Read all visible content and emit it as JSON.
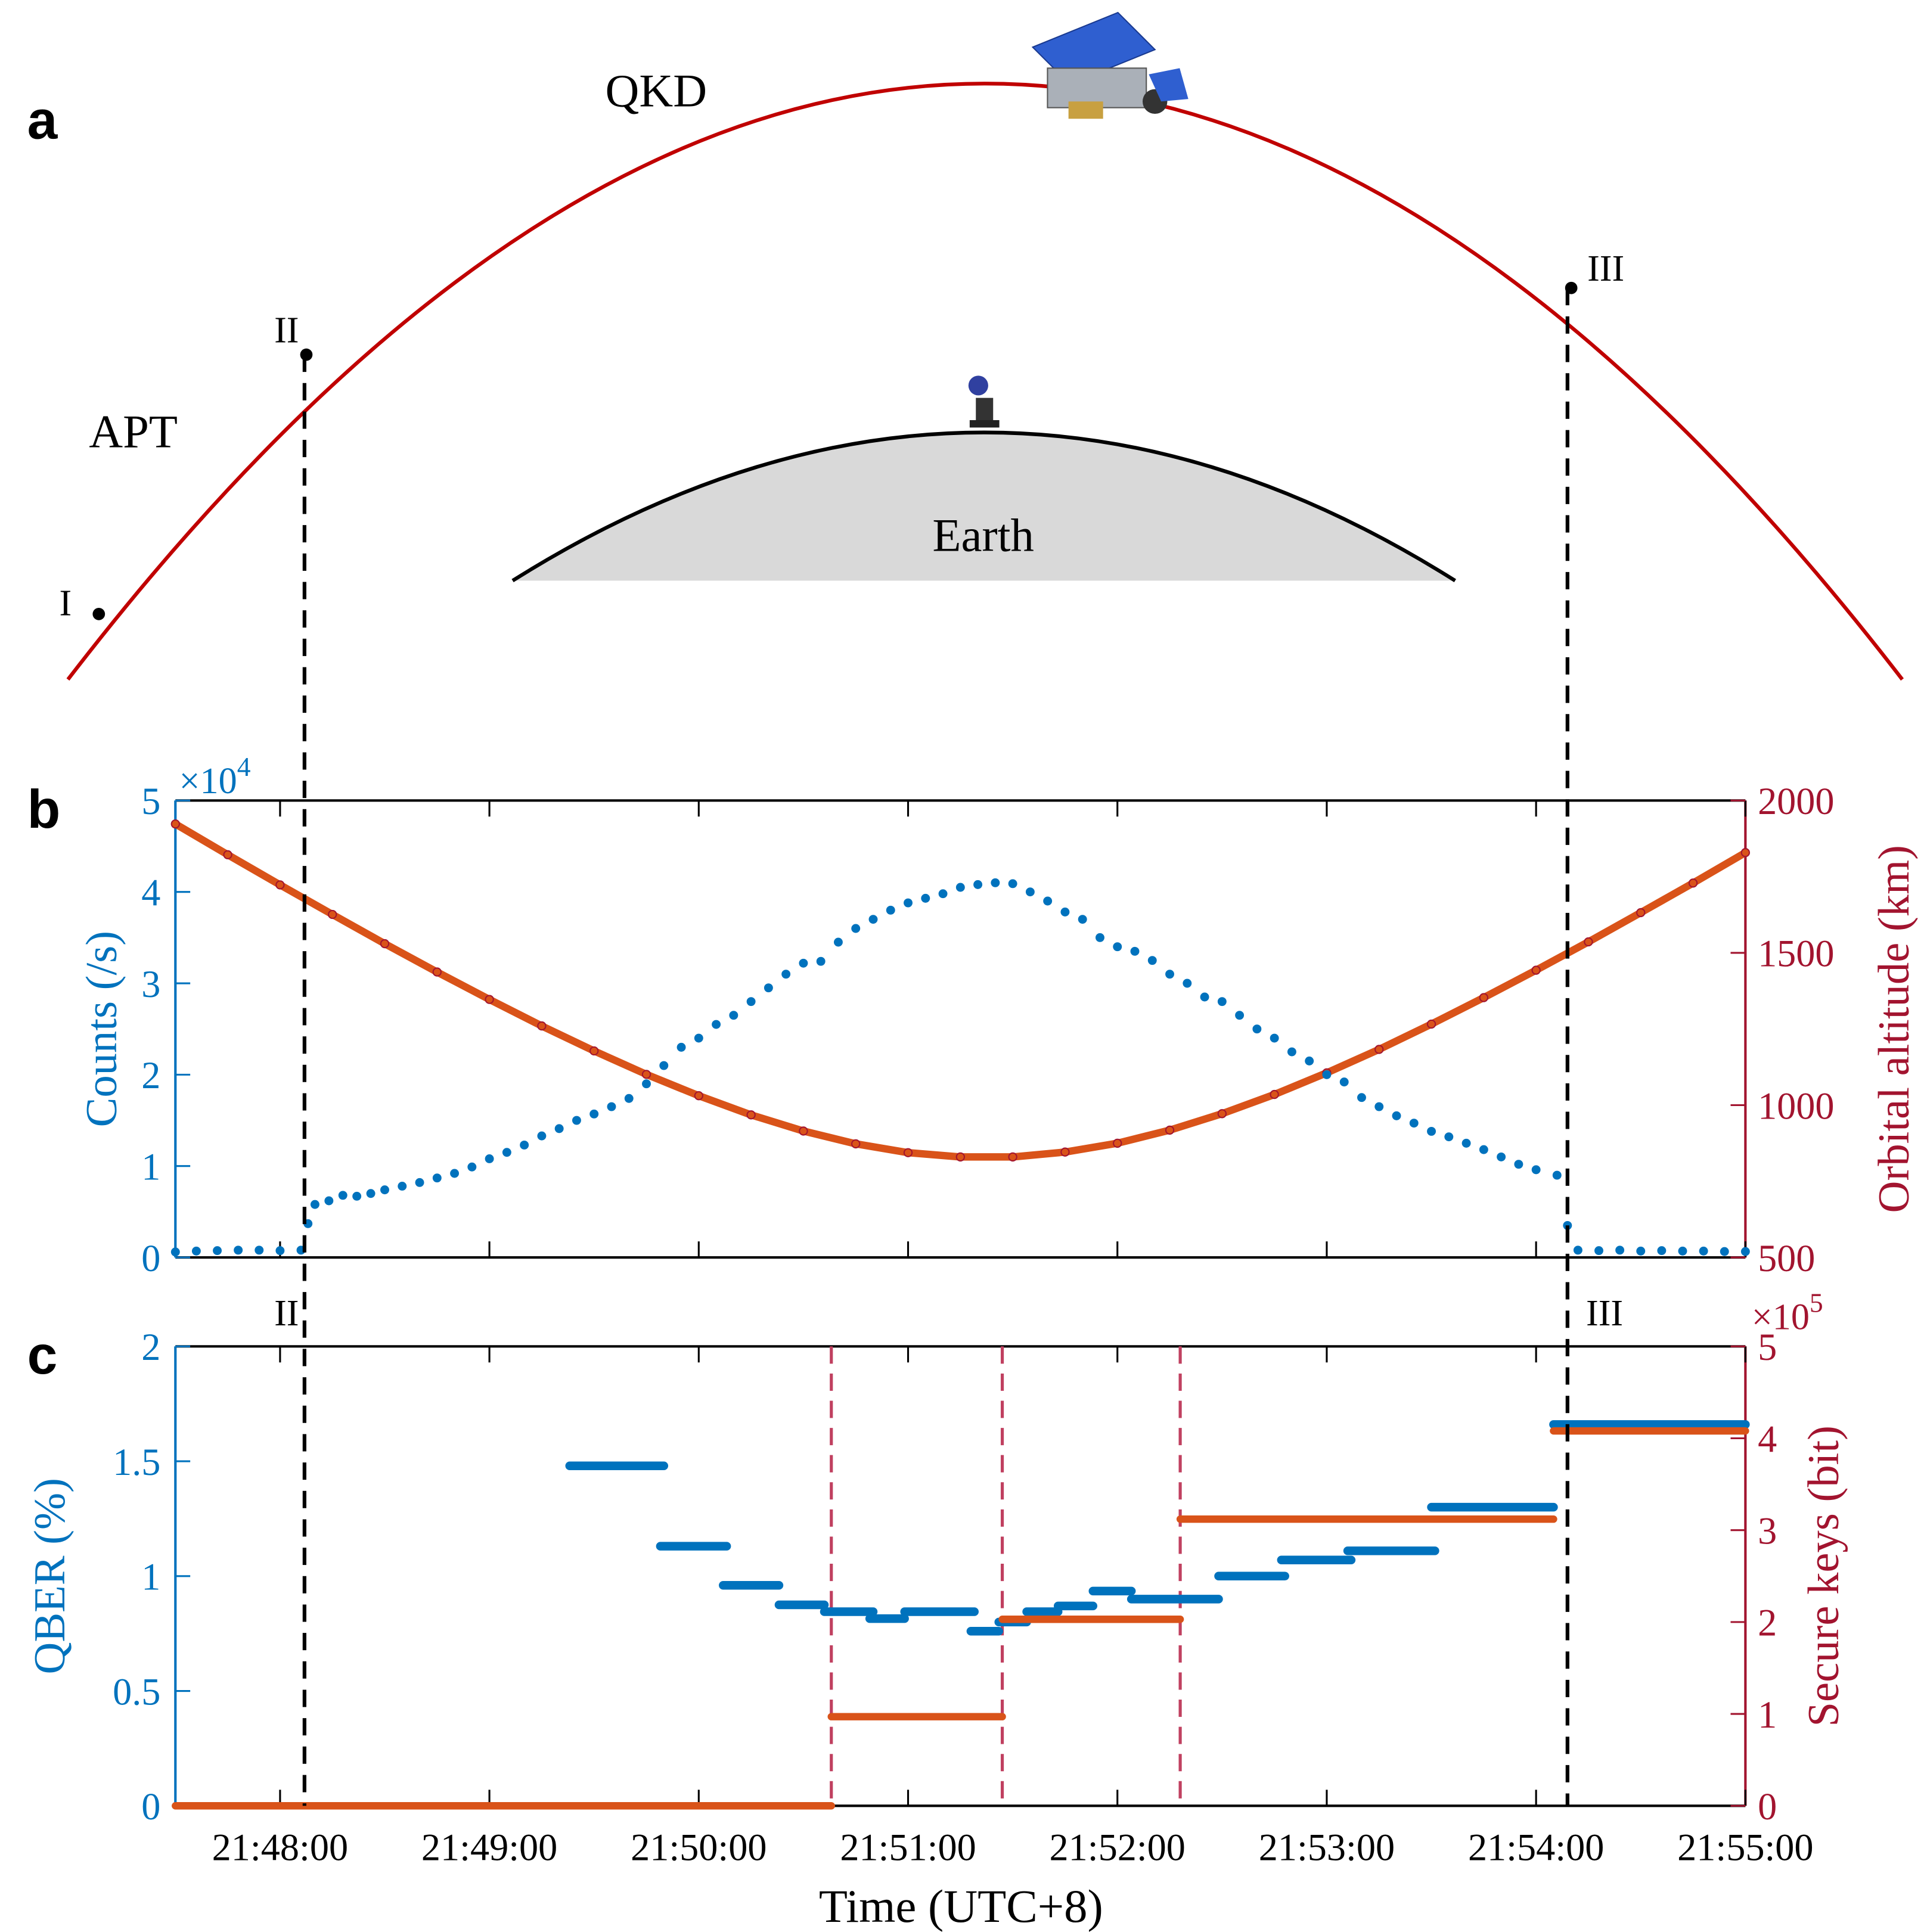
{
  "colors": {
    "blue": "#0072BD",
    "axis_red": "#A2142F",
    "dot_red": "#D95319",
    "orbit": "#C00000",
    "earth": "#D9D9D9"
  },
  "panel_a": {
    "letter": "a",
    "labels": {
      "qkd": "QKD",
      "apt": "APT",
      "earth": "Earth",
      "p1": "I",
      "p2": "II",
      "p3": "III"
    }
  },
  "chart_data": [
    {
      "panel": "b",
      "type": "scatter",
      "x_unit": "seconds relative to 21:48:00",
      "xlim": [
        -30,
        420
      ],
      "x_ticks": [
        0,
        60,
        120,
        180,
        240,
        300,
        360,
        420
      ],
      "ylabel_left": "Counts (/s)",
      "ylabel_right": "Orbital altitude (km)",
      "ylim_left": [
        0,
        50000
      ],
      "ylim_right": [
        500,
        2000
      ],
      "left_scale_label": "×10",
      "left_scale_exp": "4",
      "left_tick_labels": [
        "0",
        "1",
        "2",
        "3",
        "4",
        "5"
      ],
      "right_tick_labels": [
        "500",
        "1000",
        "1500",
        "2000"
      ],
      "markers": [
        {
          "label": "II",
          "t": 7
        },
        {
          "label": "III",
          "t": 369
        }
      ],
      "series": [
        {
          "name": "Counts",
          "axis": "left",
          "color": "#0072BD",
          "points": [
            [
              -30,
              600
            ],
            [
              -24,
              700
            ],
            [
              -18,
              750
            ],
            [
              -12,
              800
            ],
            [
              -6,
              800
            ],
            [
              0,
              750
            ],
            [
              6,
              800
            ],
            [
              8,
              3700
            ],
            [
              10,
              5800
            ],
            [
              14,
              6200
            ],
            [
              18,
              6800
            ],
            [
              22,
              6700
            ],
            [
              26,
              7000
            ],
            [
              30,
              7400
            ],
            [
              35,
              7800
            ],
            [
              40,
              8200
            ],
            [
              45,
              8700
            ],
            [
              50,
              9200
            ],
            [
              55,
              9900
            ],
            [
              60,
              10800
            ],
            [
              65,
              11500
            ],
            [
              70,
              12300
            ],
            [
              75,
              13300
            ],
            [
              80,
              14100
            ],
            [
              85,
              15000
            ],
            [
              90,
              15700
            ],
            [
              95,
              16500
            ],
            [
              100,
              17400
            ],
            [
              105,
              19000
            ],
            [
              110,
              21000
            ],
            [
              115,
              23000
            ],
            [
              120,
              24000
            ],
            [
              125,
              25500
            ],
            [
              130,
              26500
            ],
            [
              135,
              28000
            ],
            [
              140,
              29500
            ],
            [
              145,
              31000
            ],
            [
              150,
              32200
            ],
            [
              155,
              32400
            ],
            [
              160,
              34500
            ],
            [
              165,
              36000
            ],
            [
              170,
              37000
            ],
            [
              175,
              38000
            ],
            [
              180,
              38800
            ],
            [
              185,
              39300
            ],
            [
              190,
              39800
            ],
            [
              195,
              40500
            ],
            [
              200,
              40800
            ],
            [
              205,
              41000
            ],
            [
              210,
              40900
            ],
            [
              215,
              40000
            ],
            [
              220,
              39000
            ],
            [
              225,
              37800
            ],
            [
              230,
              37000
            ],
            [
              235,
              35000
            ],
            [
              240,
              34000
            ],
            [
              245,
              33500
            ],
            [
              250,
              32500
            ],
            [
              255,
              31000
            ],
            [
              260,
              30000
            ],
            [
              265,
              28500
            ],
            [
              270,
              28000
            ],
            [
              275,
              26500
            ],
            [
              280,
              25000
            ],
            [
              285,
              24000
            ],
            [
              290,
              22500
            ],
            [
              295,
              21500
            ],
            [
              300,
              20000
            ],
            [
              305,
              19200
            ],
            [
              310,
              17500
            ],
            [
              315,
              16500
            ],
            [
              320,
              15500
            ],
            [
              325,
              14700
            ],
            [
              330,
              13800
            ],
            [
              335,
              13200
            ],
            [
              340,
              12500
            ],
            [
              345,
              11800
            ],
            [
              350,
              11000
            ],
            [
              355,
              10200
            ],
            [
              360,
              9600
            ],
            [
              366,
              9000
            ],
            [
              369,
              3500
            ],
            [
              372,
              800
            ],
            [
              378,
              750
            ],
            [
              384,
              800
            ],
            [
              390,
              700
            ],
            [
              396,
              750
            ],
            [
              402,
              700
            ],
            [
              408,
              700
            ],
            [
              414,
              650
            ],
            [
              420,
              650
            ]
          ]
        },
        {
          "name": "Orbital altitude",
          "axis": "right",
          "color": "#D95319",
          "points": [
            [
              -30,
              1923
            ],
            [
              -15,
              1822
            ],
            [
              0,
              1723
            ],
            [
              15,
              1626
            ],
            [
              30,
              1530
            ],
            [
              45,
              1437
            ],
            [
              60,
              1347
            ],
            [
              75,
              1260
            ],
            [
              90,
              1178
            ],
            [
              105,
              1101
            ],
            [
              120,
              1031
            ],
            [
              135,
              968
            ],
            [
              150,
              915
            ],
            [
              165,
              873
            ],
            [
              180,
              844
            ],
            [
              195,
              830
            ],
            [
              210,
              830
            ],
            [
              225,
              846
            ],
            [
              240,
              875
            ],
            [
              255,
              918
            ],
            [
              270,
              972
            ],
            [
              285,
              1035
            ],
            [
              300,
              1106
            ],
            [
              315,
              1183
            ],
            [
              330,
              1266
            ],
            [
              345,
              1353
            ],
            [
              360,
              1443
            ],
            [
              375,
              1536
            ],
            [
              390,
              1632
            ],
            [
              405,
              1729
            ],
            [
              420,
              1829
            ]
          ]
        }
      ]
    },
    {
      "panel": "c",
      "type": "line",
      "x_unit": "seconds relative to 21:48:00",
      "xlim": [
        -30,
        420
      ],
      "x_tick_labels": [
        "21:48:00",
        "21:49:00",
        "21:50:00",
        "21:51:00",
        "21:52:00",
        "21:53:00",
        "21:54:00",
        "21:55:00"
      ],
      "xlabel": "Time (UTC+8)",
      "ylabel_left": "QBER (%)",
      "ylabel_right": "Secure keys (bit)",
      "ylim_left": [
        0,
        2
      ],
      "ylim_right": [
        0,
        500000
      ],
      "right_scale_label": "×10",
      "right_scale_exp": "5",
      "left_tick_labels": [
        "0",
        "0.5",
        "1",
        "1.5",
        "2"
      ],
      "right_tick_labels": [
        "0",
        "1",
        "2",
        "3",
        "4",
        "5"
      ],
      "markers": [
        {
          "label": "II",
          "t": 7
        },
        {
          "label": "III",
          "t": 369
        }
      ],
      "key_boundaries": [
        158,
        207,
        258
      ],
      "qber_segments": [
        [
          83,
          110,
          1.48
        ],
        [
          109,
          128,
          1.13
        ],
        [
          127,
          143,
          0.96
        ],
        [
          143,
          156,
          0.875
        ],
        [
          156,
          170,
          0.845
        ],
        [
          169,
          179,
          0.815
        ],
        [
          179,
          199,
          0.845
        ],
        [
          198,
          206,
          0.76
        ],
        [
          206,
          214,
          0.8
        ],
        [
          214,
          223,
          0.845
        ],
        [
          223,
          233,
          0.87
        ],
        [
          233,
          244,
          0.935
        ],
        [
          244,
          269,
          0.9
        ],
        [
          269,
          288,
          1.0
        ],
        [
          287,
          307,
          1.07
        ],
        [
          306,
          331,
          1.11
        ],
        [
          330,
          365,
          1.3
        ],
        [
          365,
          420,
          1.66
        ]
      ],
      "key_segments": [
        [
          -30,
          158,
          0
        ],
        [
          158,
          207,
          97000
        ],
        [
          207,
          258,
          203000
        ],
        [
          258,
          365,
          312000
        ],
        [
          365,
          420,
          408000
        ]
      ]
    }
  ],
  "panel_b": {
    "letter": "b",
    "marker_II": "II",
    "marker_III": "III"
  },
  "panel_c": {
    "letter": "c"
  }
}
